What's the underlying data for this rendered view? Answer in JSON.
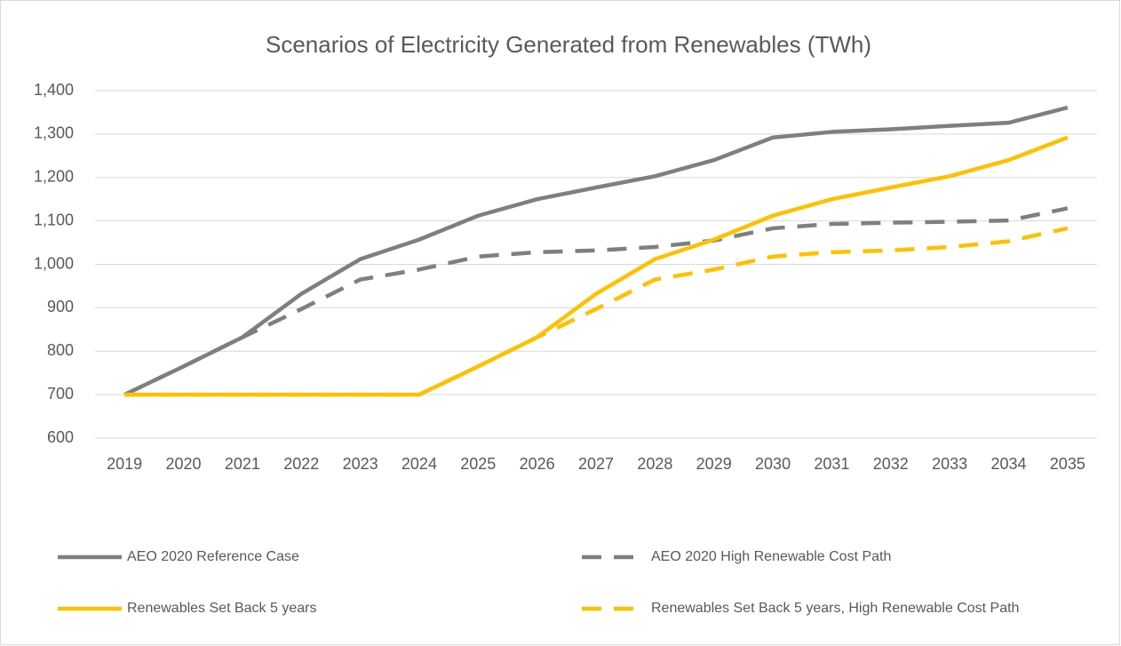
{
  "chart_data": {
    "type": "line",
    "title": "Scenarios of Electricity Generated from Renewables (TWh)",
    "categories": [
      "2019",
      "2020",
      "2021",
      "2022",
      "2023",
      "2024",
      "2025",
      "2026",
      "2027",
      "2028",
      "2029",
      "2030",
      "2031",
      "2032",
      "2033",
      "2034",
      "2035"
    ],
    "series": [
      {
        "name": "AEO 2020 Reference Case",
        "color": "#7f7f7f",
        "dash": "solid",
        "values": [
          700,
          765,
          832,
          932,
          1012,
          1057,
          1112,
          1150,
          1177,
          1203,
          1240,
          1292,
          1305,
          1311,
          1319,
          1326,
          1361
        ]
      },
      {
        "name": "AEO 2020 High Renewable Cost Path",
        "color": "#7f7f7f",
        "dash": "dashed",
        "values": [
          700,
          765,
          832,
          897,
          965,
          988,
          1018,
          1028,
          1032,
          1040,
          1055,
          1083,
          1093,
          1096,
          1098,
          1101,
          1129
        ]
      },
      {
        "name": "Renewables Set Back 5 years",
        "color": "#ffc000",
        "dash": "solid",
        "values": [
          700,
          700,
          700,
          700,
          700,
          700,
          765,
          832,
          932,
          1012,
          1057,
          1112,
          1150,
          1177,
          1203,
          1240,
          1292
        ]
      },
      {
        "name": "Renewables Set Back 5 years, High Renewable Cost Path",
        "color": "#ffc000",
        "dash": "dashed",
        "values": [
          700,
          700,
          700,
          700,
          700,
          700,
          765,
          832,
          897,
          965,
          988,
          1018,
          1028,
          1032,
          1040,
          1053,
          1083
        ]
      }
    ],
    "ylim": [
      600,
      1400
    ],
    "yticks": [
      600,
      700,
      800,
      900,
      {
        "value": 1000,
        "label": "1,000"
      },
      {
        "value": 1100,
        "label": "1,100"
      },
      {
        "value": 1200,
        "label": "1,200"
      },
      {
        "value": 1300,
        "label": "1,300"
      },
      {
        "value": 1400,
        "label": "1,400"
      }
    ],
    "grid": true,
    "legend": "bottom"
  }
}
